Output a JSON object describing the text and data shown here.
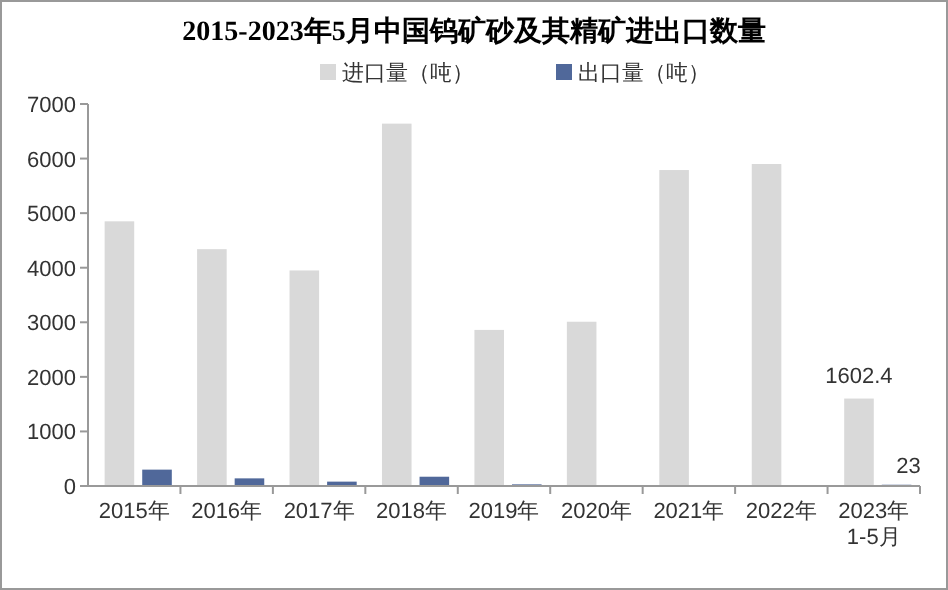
{
  "chart_data": {
    "type": "bar",
    "title": "2015-2023年5月中国钨矿砂及其精矿进出口数量",
    "categories": [
      "2015年",
      "2016年",
      "2017年",
      "2018年",
      "2019年",
      "2020年",
      "2021年",
      "2022年",
      "2023年\n1-5月"
    ],
    "series": [
      {
        "name": "进口量（吨）",
        "color": "#d9d9d9",
        "values": [
          4850,
          4340,
          3950,
          6640,
          2860,
          3010,
          5790,
          5900,
          1602.4
        ],
        "value_labels": [
          null,
          null,
          null,
          null,
          null,
          null,
          null,
          null,
          "1602.4"
        ]
      },
      {
        "name": "出口量（吨）",
        "color": "#50689a",
        "values": [
          300,
          140,
          80,
          170,
          30,
          null,
          null,
          null,
          23
        ],
        "value_labels": [
          null,
          null,
          null,
          null,
          null,
          null,
          null,
          null,
          "23"
        ]
      }
    ],
    "ylim": [
      0,
      7000
    ],
    "yticks": [
      0,
      1000,
      2000,
      3000,
      4000,
      5000,
      6000,
      7000
    ],
    "grid": false,
    "legend": "top"
  }
}
